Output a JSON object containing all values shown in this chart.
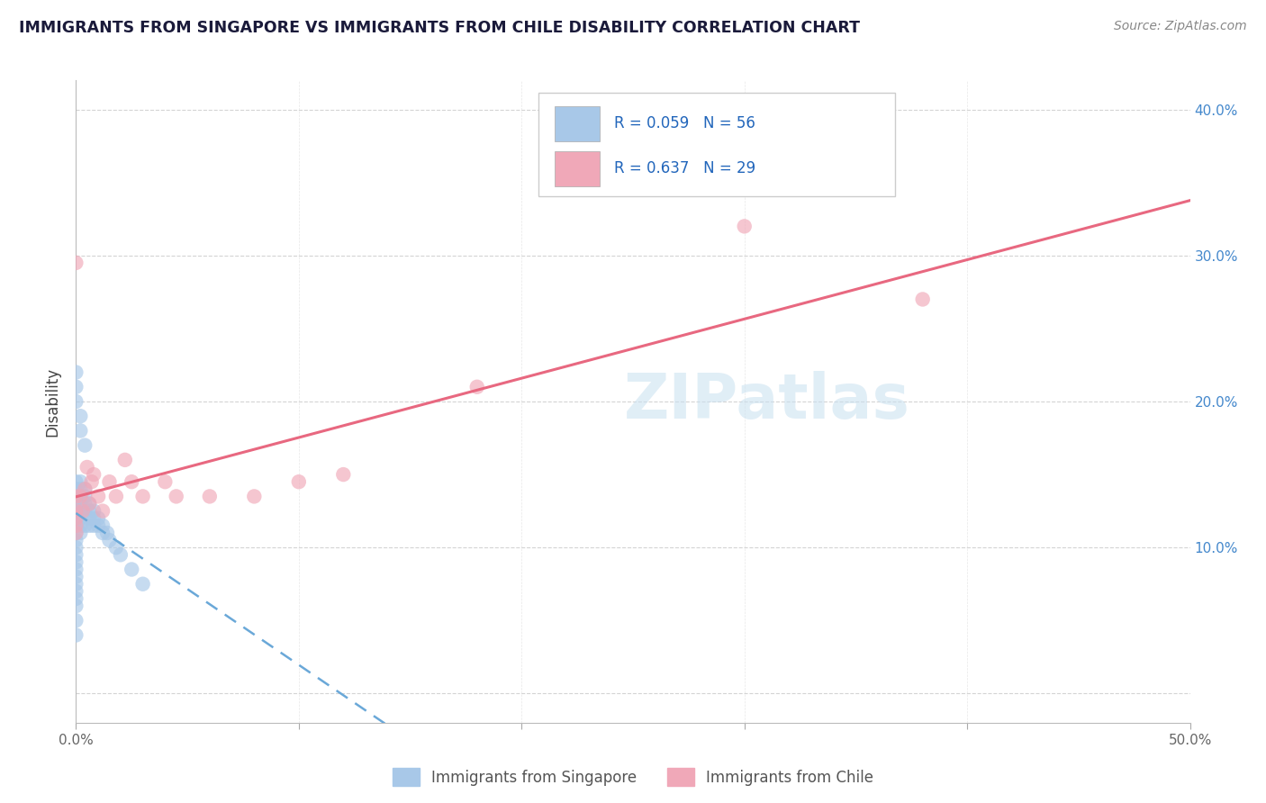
{
  "title": "IMMIGRANTS FROM SINGAPORE VS IMMIGRANTS FROM CHILE DISABILITY CORRELATION CHART",
  "source": "Source: ZipAtlas.com",
  "ylabel": "Disability",
  "xlim": [
    0.0,
    0.5
  ],
  "ylim": [
    -0.02,
    0.42
  ],
  "xticks": [
    0.0,
    0.1,
    0.2,
    0.3,
    0.4,
    0.5
  ],
  "xticklabels": [
    "0.0%",
    "",
    "",
    "",
    "",
    "50.0%"
  ],
  "yticks": [
    0.0,
    0.1,
    0.2,
    0.3,
    0.4
  ],
  "yticklabels_right": [
    "",
    "10.0%",
    "20.0%",
    "30.0%",
    "40.0%"
  ],
  "watermark": "ZIPatlas",
  "legend_r_singapore": "R = 0.059",
  "legend_n_singapore": "N = 56",
  "legend_r_chile": "R = 0.637",
  "legend_n_chile": "N = 29",
  "singapore_color": "#a8c8e8",
  "chile_color": "#f0a8b8",
  "singapore_line_color": "#6aa8d8",
  "chile_line_color": "#e86880",
  "background_color": "#ffffff",
  "grid_color": "#d0d0d0",
  "singapore_x": [
    0.0,
    0.0,
    0.0,
    0.0,
    0.0,
    0.0,
    0.0,
    0.0,
    0.0,
    0.0,
    0.0,
    0.0,
    0.0,
    0.0,
    0.0,
    0.0,
    0.0,
    0.0,
    0.0,
    0.0,
    0.002,
    0.002,
    0.002,
    0.002,
    0.002,
    0.002,
    0.002,
    0.002,
    0.004,
    0.004,
    0.004,
    0.004,
    0.004,
    0.006,
    0.006,
    0.006,
    0.006,
    0.008,
    0.008,
    0.008,
    0.01,
    0.01,
    0.012,
    0.012,
    0.014,
    0.015,
    0.018,
    0.02,
    0.025,
    0.03,
    0.0,
    0.0,
    0.0,
    0.002,
    0.002,
    0.004
  ],
  "singapore_y": [
    0.145,
    0.14,
    0.135,
    0.13,
    0.125,
    0.12,
    0.115,
    0.11,
    0.105,
    0.1,
    0.095,
    0.09,
    0.085,
    0.08,
    0.075,
    0.07,
    0.065,
    0.06,
    0.05,
    0.04,
    0.145,
    0.14,
    0.135,
    0.13,
    0.125,
    0.12,
    0.115,
    0.11,
    0.14,
    0.135,
    0.13,
    0.125,
    0.115,
    0.13,
    0.125,
    0.12,
    0.115,
    0.125,
    0.12,
    0.115,
    0.12,
    0.115,
    0.115,
    0.11,
    0.11,
    0.105,
    0.1,
    0.095,
    0.085,
    0.075,
    0.22,
    0.21,
    0.2,
    0.19,
    0.18,
    0.17
  ],
  "chile_x": [
    0.0,
    0.0,
    0.0,
    0.0,
    0.0,
    0.0,
    0.002,
    0.003,
    0.004,
    0.006,
    0.007,
    0.01,
    0.012,
    0.015,
    0.018,
    0.022,
    0.025,
    0.03,
    0.04,
    0.045,
    0.06,
    0.08,
    0.1,
    0.12,
    0.18,
    0.3,
    0.38,
    0.005,
    0.008
  ],
  "chile_y": [
    0.135,
    0.125,
    0.12,
    0.115,
    0.11,
    0.295,
    0.135,
    0.125,
    0.14,
    0.13,
    0.145,
    0.135,
    0.125,
    0.145,
    0.135,
    0.16,
    0.145,
    0.135,
    0.145,
    0.135,
    0.135,
    0.135,
    0.145,
    0.15,
    0.21,
    0.32,
    0.27,
    0.155,
    0.15
  ]
}
